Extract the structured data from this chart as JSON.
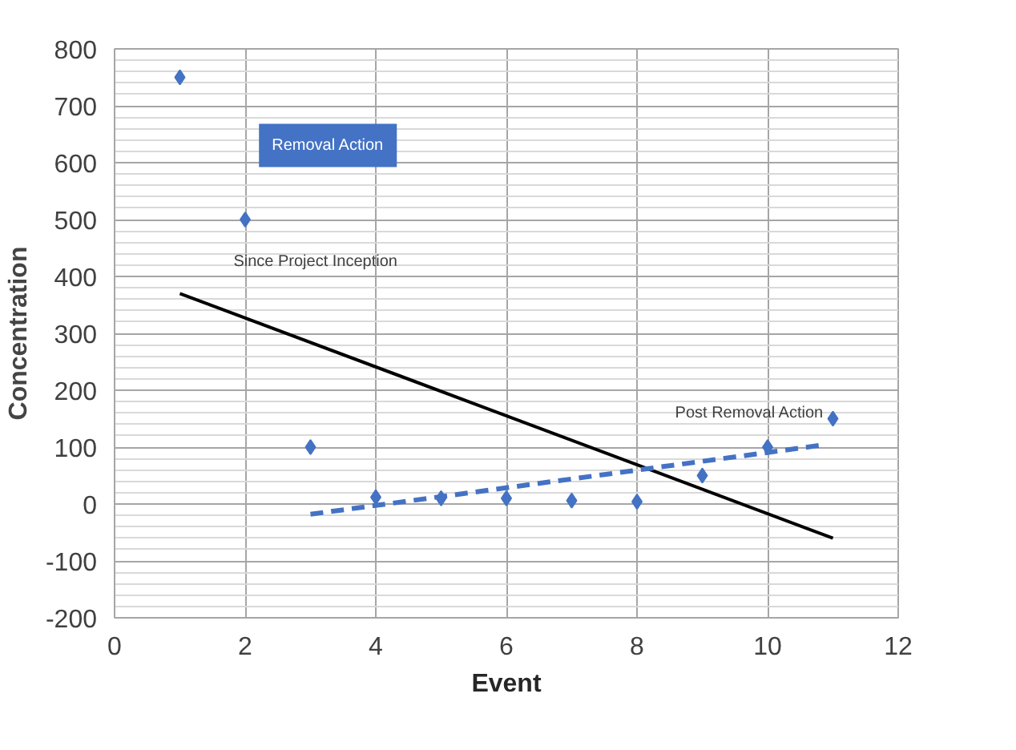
{
  "chart_data": {
    "type": "scatter",
    "xlabel": "Event",
    "ylabel": "Concentration",
    "x": [
      1,
      2,
      3,
      4,
      5,
      6,
      7,
      8,
      9,
      10,
      11
    ],
    "series": [
      {
        "color": "#4472c4",
        "marker": "diamond",
        "values": [
          750,
          500,
          100,
          12,
          10,
          10,
          6,
          4,
          50,
          100,
          150
        ]
      },
      {
        "type": "line",
        "color": "#000000",
        "line_style": "solid",
        "x": [
          1,
          11
        ],
        "values": [
          370,
          -60
        ]
      },
      {
        "type": "line",
        "color": "#4472c4",
        "line_style": "dashed",
        "x": [
          3,
          10.8
        ],
        "values": [
          -18,
          103
        ]
      }
    ],
    "annotations": [
      "Removal Action",
      "Since Project Inception",
      "Post Removal Action"
    ],
    "xlim": [
      0,
      12
    ],
    "xticks": [
      0,
      2,
      4,
      6,
      8,
      10,
      12
    ],
    "ylim": [
      -200,
      800
    ],
    "yticks": [
      -200,
      -100,
      0,
      100,
      200,
      300,
      400,
      500,
      600,
      700,
      800
    ],
    "grid": true
  }
}
